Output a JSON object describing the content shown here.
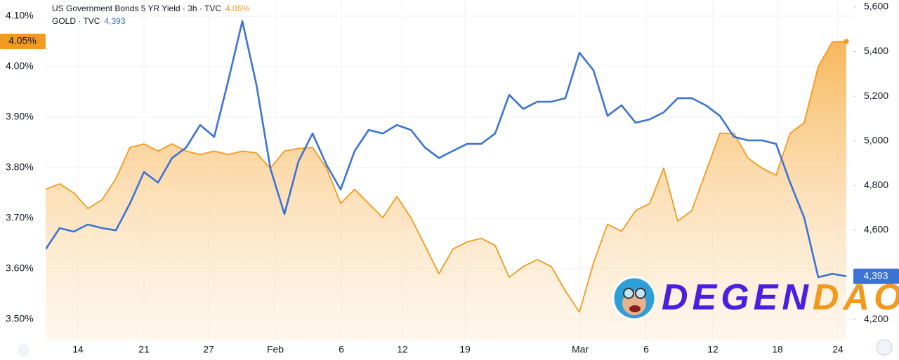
{
  "chart_data": {
    "type": "line",
    "series": [
      {
        "name": "US Government Bonds 5 YR Yield · 3h · TVC",
        "color": "#f29a1f",
        "axis": "y",
        "area": true,
        "last_label": "4.05%",
        "values": [
          3.757,
          3.768,
          3.75,
          3.719,
          3.736,
          3.778,
          3.84,
          3.847,
          3.833,
          3.847,
          3.833,
          3.826,
          3.833,
          3.826,
          3.833,
          3.829,
          3.799,
          3.833,
          3.838,
          3.84,
          3.799,
          3.729,
          3.757,
          3.729,
          3.701,
          3.743,
          3.701,
          3.646,
          3.59,
          3.639,
          3.653,
          3.66,
          3.646,
          3.583,
          3.604,
          3.618,
          3.604,
          3.556,
          3.514,
          3.611,
          3.688,
          3.674,
          3.715,
          3.729,
          3.799,
          3.694,
          3.715,
          3.792,
          3.868,
          3.868,
          3.819,
          3.799,
          3.785,
          3.868,
          3.889,
          4.0,
          4.049,
          4.05
        ]
      },
      {
        "name": "GOLD · TVC",
        "color": "#3b73d4",
        "axis": "y2",
        "area": false,
        "last_label": "4,393",
        "values": [
          4514,
          4609,
          4593,
          4625,
          4609,
          4599,
          4719,
          4860,
          4813,
          4923,
          4970,
          5071,
          5018,
          5269,
          5536,
          5253,
          4876,
          4672,
          4908,
          5033,
          4892,
          4782,
          4955,
          5049,
          5033,
          5071,
          5049,
          4970,
          4923,
          4955,
          4986,
          4986,
          5033,
          5206,
          5143,
          5175,
          5175,
          5191,
          5395,
          5316,
          5112,
          5159,
          5081,
          5096,
          5128,
          5191,
          5191,
          5159,
          5112,
          5018,
          5002,
          5002,
          4986,
          4813,
          4656,
          4389,
          4404,
          4393
        ]
      }
    ],
    "xlim": [
      0,
      57.5
    ],
    "xticks": [
      {
        "value": 2.3,
        "label": "14"
      },
      {
        "value": 7,
        "label": "21"
      },
      {
        "value": 11.6,
        "label": "27"
      },
      {
        "value": 16.35,
        "label": "Feb"
      },
      {
        "value": 21.05,
        "label": "6"
      },
      {
        "value": 25.4,
        "label": "12"
      },
      {
        "value": 29.85,
        "label": "19"
      },
      {
        "value": 38.05,
        "label": "Mar"
      },
      {
        "value": 42.75,
        "label": "6"
      },
      {
        "value": 47.5,
        "label": "12"
      },
      {
        "value": 52.1,
        "label": "18"
      },
      {
        "value": 56.4,
        "label": "24"
      }
    ],
    "ylim": [
      3.458,
      4.132
    ],
    "yticks": [
      {
        "value": 3.5,
        "label": "3.50%"
      },
      {
        "value": 3.6,
        "label": "3.60%"
      },
      {
        "value": 3.7,
        "label": "3.70%"
      },
      {
        "value": 3.8,
        "label": "3.80%"
      },
      {
        "value": 3.9,
        "label": "3.90%"
      },
      {
        "value": 4.0,
        "label": "4.00%"
      },
      {
        "value": 4.1,
        "label": "4.10%"
      }
    ],
    "y2lim": [
      4106,
      5631
    ],
    "y2ticks": [
      {
        "value": 4200,
        "label": "4,200"
      },
      {
        "value": 4600,
        "label": "4,600"
      },
      {
        "value": 4800,
        "label": "4,800"
      },
      {
        "value": 5000,
        "label": "5,000"
      },
      {
        "value": 5200,
        "label": "5,200"
      },
      {
        "value": 5400,
        "label": "5,400"
      },
      {
        "value": 5600,
        "label": "5,600"
      }
    ],
    "grid": true,
    "watermark": {
      "parts": [
        "DEGEN",
        "DAO!"
      ],
      "colors": [
        "#4b1fe0",
        "#f29a1f"
      ]
    }
  }
}
